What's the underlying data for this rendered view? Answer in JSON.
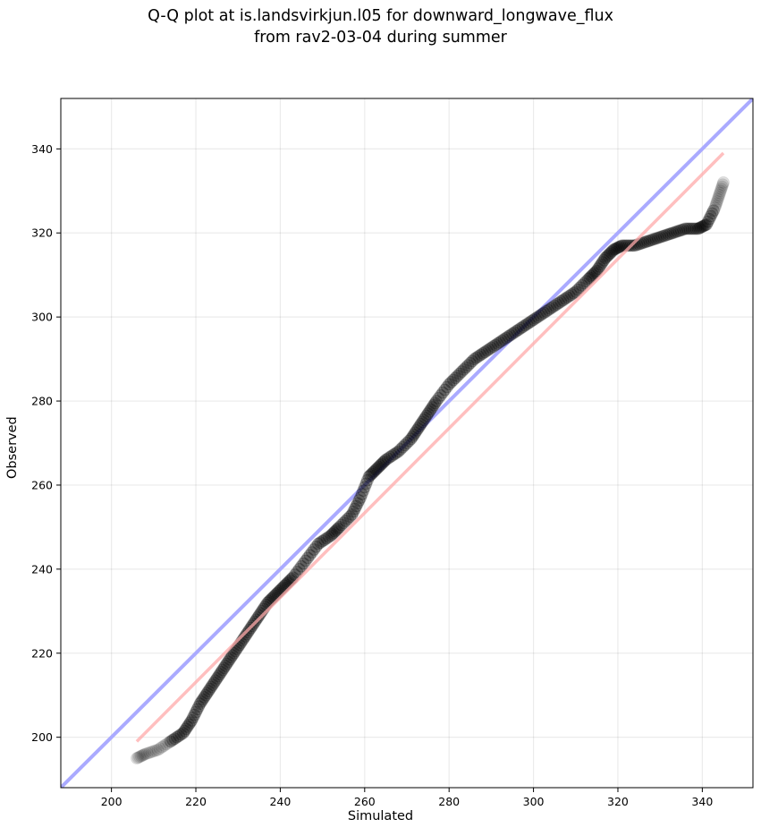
{
  "chart_data": {
    "type": "scatter",
    "title_line1": "Q-Q plot at is.landsvirkjun.l05 for downward_longwave_flux",
    "title_line2": "from rav2-03-04 during summer",
    "xlabel": "Simulated",
    "ylabel": "Observed",
    "xlim": [
      188,
      352
    ],
    "ylim": [
      188,
      352
    ],
    "xticks": [
      200,
      220,
      240,
      260,
      280,
      300,
      320,
      340
    ],
    "yticks": [
      200,
      220,
      240,
      260,
      280,
      300,
      320,
      340
    ],
    "grid": true,
    "reference_line_color": "#aaaaff",
    "fit_line_color": "#ffaaaa",
    "fit_line": {
      "x": [
        206,
        345
      ],
      "y": [
        199,
        339
      ]
    },
    "quantile_path": {
      "x": [
        206,
        208,
        211,
        214,
        217,
        219,
        221,
        223,
        225,
        227,
        229,
        231,
        233,
        235,
        237,
        239,
        241,
        243,
        246,
        249,
        252,
        254,
        257,
        259,
        261,
        263,
        265,
        268,
        271,
        273,
        275,
        277,
        280,
        283,
        286,
        289,
        292,
        295,
        298,
        301,
        304,
        307,
        310,
        313,
        315,
        317,
        319,
        321,
        324,
        327,
        330,
        333,
        336,
        339,
        341,
        343,
        344,
        345
      ],
      "y": [
        195,
        196,
        197,
        199,
        201,
        204,
        208,
        211,
        214,
        217,
        220,
        223,
        226,
        229,
        232,
        234,
        236,
        238,
        242,
        246,
        248,
        250,
        253,
        257,
        262,
        264,
        266,
        268,
        271,
        274,
        277,
        280,
        284,
        287,
        290,
        292,
        294,
        296,
        298,
        300,
        302,
        304,
        306,
        309,
        311,
        314,
        316,
        317,
        317,
        318,
        319,
        320,
        321,
        321,
        322,
        326,
        329,
        332
      ]
    }
  }
}
